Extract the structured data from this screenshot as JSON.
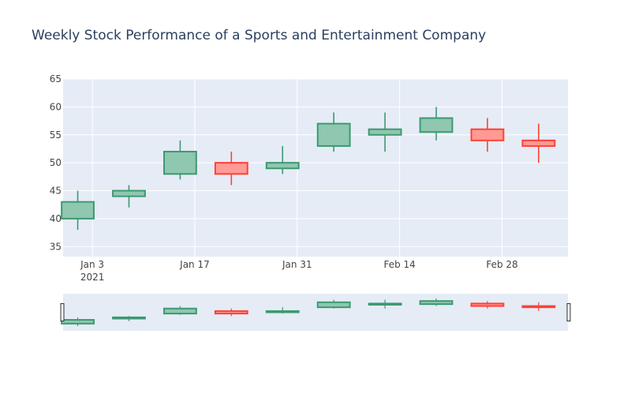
{
  "chart_data": {
    "type": "candlestick",
    "title": "Weekly Stock Performance of a Sports and Entertainment Company",
    "xlabel": "",
    "ylabel": "",
    "ylim": [
      33.2,
      65
    ],
    "yticks": [
      35,
      40,
      45,
      50,
      55,
      60,
      65
    ],
    "xlim": [
      "2020-12-30",
      "2021-03-09"
    ],
    "xticks": [
      {
        "date": "2021-01-03",
        "label": "Jan 3",
        "sublabel": "2021"
      },
      {
        "date": "2021-01-17",
        "label": "Jan 17",
        "sublabel": ""
      },
      {
        "date": "2021-01-31",
        "label": "Jan 31",
        "sublabel": ""
      },
      {
        "date": "2021-02-14",
        "label": "Feb 14",
        "sublabel": ""
      },
      {
        "date": "2021-02-28",
        "label": "Feb 28",
        "sublabel": ""
      }
    ],
    "candles": [
      {
        "date": "2021-01-01",
        "open": 40,
        "high": 45,
        "low": 38,
        "close": 43
      },
      {
        "date": "2021-01-08",
        "open": 44,
        "high": 46,
        "low": 42,
        "close": 45
      },
      {
        "date": "2021-01-15",
        "open": 48,
        "high": 54,
        "low": 47,
        "close": 52
      },
      {
        "date": "2021-01-22",
        "open": 50,
        "high": 52,
        "low": 46,
        "close": 48
      },
      {
        "date": "2021-01-29",
        "open": 49,
        "high": 53,
        "low": 48,
        "close": 50
      },
      {
        "date": "2021-02-05",
        "open": 53,
        "high": 59,
        "low": 52,
        "close": 57
      },
      {
        "date": "2021-02-12",
        "open": 55,
        "high": 59,
        "low": 52,
        "close": 56
      },
      {
        "date": "2021-02-19",
        "open": 55.5,
        "high": 60,
        "low": 54,
        "close": 58
      },
      {
        "date": "2021-02-26",
        "open": 56,
        "high": 58,
        "low": 52,
        "close": 54
      },
      {
        "date": "2021-03-05",
        "open": 54,
        "high": 57,
        "low": 50,
        "close": 53
      }
    ],
    "colors": {
      "increasing_line": "#3d9970",
      "increasing_fill": "#8fc7b0",
      "decreasing_line": "#ff4136",
      "decreasing_fill": "#ff9a94",
      "plot_bg": "#e5ecf6",
      "grid": "#ffffff",
      "text": "#2a3f5f",
      "tick_text": "#444444"
    },
    "grid": true,
    "range_slider": true
  }
}
